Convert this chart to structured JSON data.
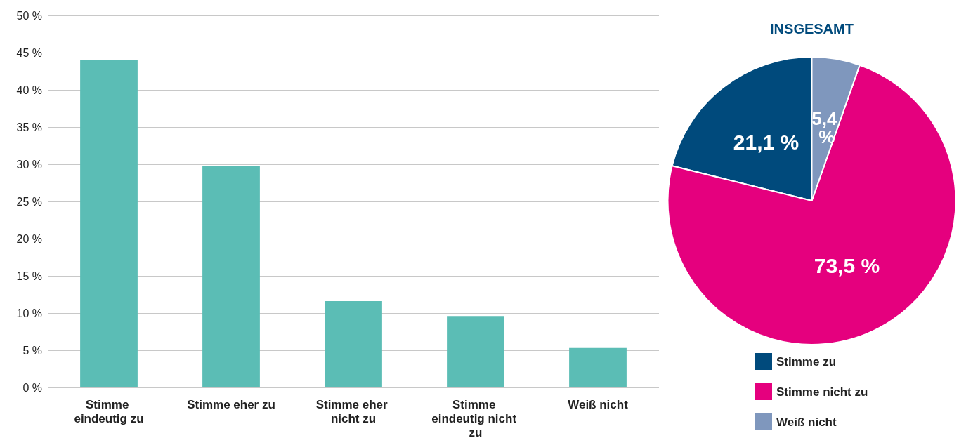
{
  "chart_data": [
    {
      "type": "bar",
      "categories": [
        "Stimme eindeutig zu",
        "Stimme eher zu",
        "Stimme eher nicht zu",
        "Stimme eindeutig nicht zu",
        "Weiß nicht"
      ],
      "values": [
        44,
        29.8,
        11.6,
        9.6,
        5.3
      ],
      "color": "#5bbdb5",
      "ylim": [
        0,
        50
      ],
      "yticks": [
        {
          "value": 0,
          "label": "0 %"
        },
        {
          "value": 5,
          "label": "5 %"
        },
        {
          "value": 10,
          "label": "10 %"
        },
        {
          "value": 15,
          "label": "15 %"
        },
        {
          "value": 20,
          "label": "20 %"
        },
        {
          "value": 25,
          "label": "25 %"
        },
        {
          "value": 30,
          "label": "30 %"
        },
        {
          "value": 35,
          "label": "35 %"
        },
        {
          "value": 40,
          "label": "40 %"
        },
        {
          "value": 45,
          "label": "45 %"
        },
        {
          "value": 50,
          "label": "50 %"
        }
      ],
      "grid": "y"
    },
    {
      "type": "pie",
      "title": "INSGESAMT",
      "categories": [
        "Stimme zu",
        "Stimme nicht zu",
        "Weiß nicht"
      ],
      "values": [
        21.1,
        73.5,
        5.4
      ],
      "colors": [
        "#004a7c",
        "#e5007e",
        "#7f97bd"
      ],
      "value_labels": [
        "21,1 %",
        "73,5 %",
        "5,4 %"
      ],
      "legend": "bottom"
    }
  ]
}
